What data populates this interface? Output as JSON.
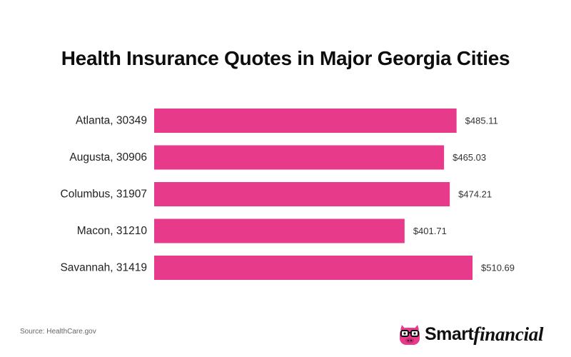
{
  "chart_data": {
    "type": "bar",
    "orientation": "horizontal",
    "title": "Health Insurance Quotes in Major Georgia Cities",
    "categories": [
      "Atlanta, 30349",
      "Augusta, 30906",
      "Columbus, 31907",
      "Macon, 31210",
      "Savannah, 31419"
    ],
    "values": [
      485.11,
      465.03,
      474.21,
      401.71,
      510.69
    ],
    "value_labels": [
      "$485.11",
      "$465.03",
      "$474.21",
      "$401.71",
      "$510.69"
    ],
    "xlabel": "",
    "ylabel": "",
    "xlim": [
      0,
      510.69
    ],
    "grid": false,
    "legend": "none",
    "bar_color": "#E83A8A"
  },
  "footer": {
    "source": "Source: HealthCare.gov"
  },
  "logo": {
    "icon": "pig-with-glasses-icon",
    "word_bold": "Smart",
    "word_italic": "financial",
    "color": "#E83A8A"
  }
}
